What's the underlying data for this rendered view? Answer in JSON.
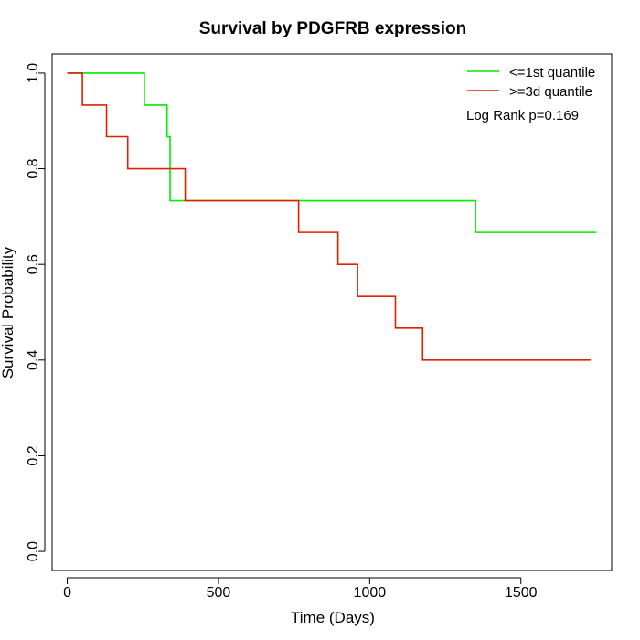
{
  "chart_data": {
    "type": "line",
    "title": "Survival by PDGFRB expression",
    "xlabel": "Time (Days)",
    "ylabel": "Survival Probability",
    "xlim": [
      -50,
      1800
    ],
    "ylim": [
      -0.04,
      1.04
    ],
    "xticks": [
      0,
      500,
      1000,
      1500
    ],
    "yticks": [
      0.0,
      0.2,
      0.4,
      0.6,
      0.8,
      1.0
    ],
    "xtick_labels": [
      "0",
      "500",
      "1000",
      "1500"
    ],
    "ytick_labels": [
      "0.0",
      "0.2",
      "0.4",
      "0.6",
      "0.8",
      "1.0"
    ],
    "grid": false,
    "legend_position": "top-right",
    "series": [
      {
        "name": "<=1st quantile",
        "color": "#00ee00",
        "step": true,
        "x": [
          0,
          255,
          330,
          340,
          1350,
          1750
        ],
        "y": [
          1.0,
          0.933,
          0.867,
          0.733,
          0.667,
          0.667
        ]
      },
      {
        "name": ">=3d quantile",
        "color": "#dd2200",
        "step": true,
        "x": [
          0,
          50,
          130,
          200,
          390,
          765,
          895,
          960,
          1085,
          1175,
          1730
        ],
        "y": [
          1.0,
          0.933,
          0.867,
          0.8,
          0.733,
          0.667,
          0.6,
          0.533,
          0.467,
          0.4,
          0.4
        ]
      }
    ],
    "annotation": "Log Rank p=0.169"
  }
}
